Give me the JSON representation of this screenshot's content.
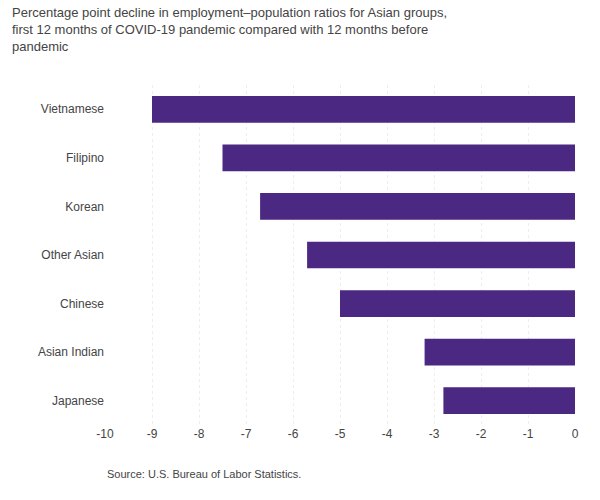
{
  "chart_data": {
    "type": "bar",
    "orientation": "horizontal",
    "title": "Percentage point decline in employment–population ratios for Asian groups,\nfirst 12 months of COVID-19 pandemic compared with 12 months before\npandemic",
    "categories": [
      "Vietnamese",
      "Filipino",
      "Korean",
      "Other Asian",
      "Chinese",
      "Asian Indian",
      "Japanese"
    ],
    "values": [
      -9.0,
      -7.5,
      -6.7,
      -5.7,
      -5.0,
      -3.2,
      -2.8
    ],
    "color": "#4B2882",
    "xlim": [
      -10,
      0
    ],
    "xticks": [
      -10,
      -9,
      -8,
      -7,
      -6,
      -5,
      -4,
      -3,
      -2,
      -1,
      0
    ],
    "grid": true,
    "annotations": [
      "Source: U.S. Bureau of Labor Statistics."
    ]
  }
}
